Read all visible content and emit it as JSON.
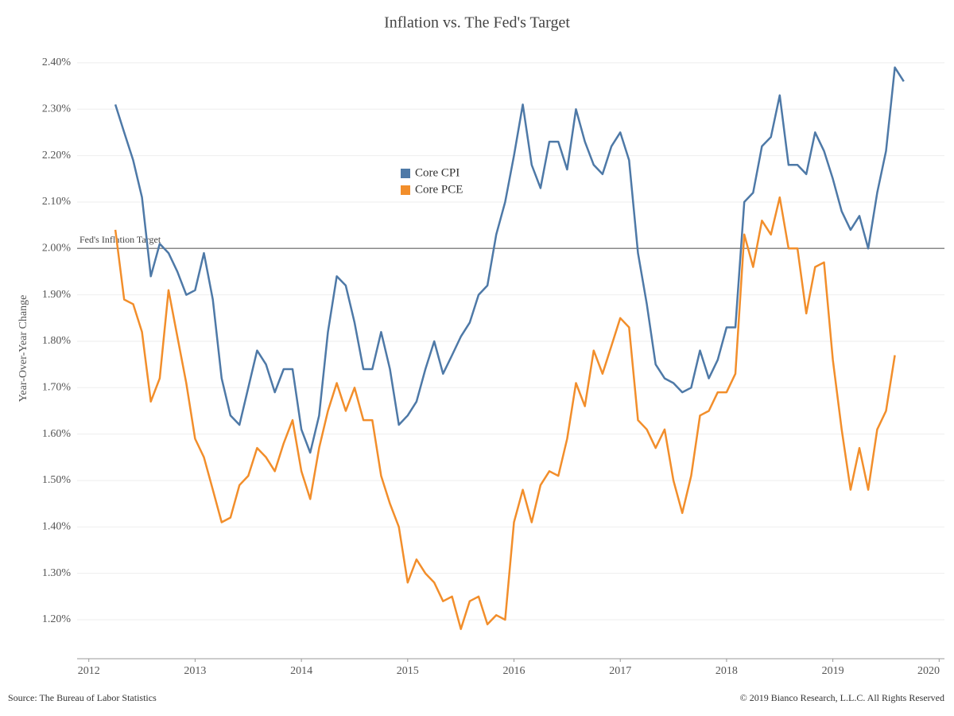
{
  "chart_data": {
    "type": "line",
    "title": "Inflation vs. The Fed's Target",
    "y_label": "Year-Over-Year Change",
    "source": "Source: The Bureau of Labor Statistics",
    "copyright": "© 2019 Bianco Research, L.L.C. All Rights Reserved",
    "reference_line": {
      "text": "Fed's Inflation Target",
      "value": 2.0,
      "color": "#888888"
    },
    "x": [
      2012.25,
      2012.333,
      2012.417,
      2012.5,
      2012.583,
      2012.667,
      2012.75,
      2012.833,
      2012.917,
      2013,
      2013.083,
      2013.167,
      2013.25,
      2013.333,
      2013.417,
      2013.5,
      2013.583,
      2013.667,
      2013.75,
      2013.833,
      2013.917,
      2014,
      2014.083,
      2014.167,
      2014.25,
      2014.333,
      2014.417,
      2014.5,
      2014.583,
      2014.667,
      2014.75,
      2014.833,
      2014.917,
      2015,
      2015.083,
      2015.167,
      2015.25,
      2015.333,
      2015.417,
      2015.5,
      2015.583,
      2015.667,
      2015.75,
      2015.833,
      2015.917,
      2016,
      2016.083,
      2016.167,
      2016.25,
      2016.333,
      2016.417,
      2016.5,
      2016.583,
      2016.667,
      2016.75,
      2016.833,
      2016.917,
      2017,
      2017.083,
      2017.167,
      2017.25,
      2017.333,
      2017.417,
      2017.5,
      2017.583,
      2017.667,
      2017.75,
      2017.833,
      2017.917,
      2018,
      2018.083,
      2018.167,
      2018.25,
      2018.333,
      2018.417,
      2018.5,
      2018.583,
      2018.667,
      2018.75,
      2018.833,
      2018.917,
      2019,
      2019.083,
      2019.167,
      2019.25,
      2019.333,
      2019.417,
      2019.5,
      2019.583,
      2019.667
    ],
    "series": [
      {
        "name": "Core CPI",
        "color": "#4e79a7",
        "values": [
          2.31,
          2.25,
          2.19,
          2.11,
          1.94,
          2.01,
          1.99,
          1.95,
          1.9,
          1.91,
          1.99,
          1.89,
          1.72,
          1.64,
          1.62,
          1.7,
          1.78,
          1.75,
          1.69,
          1.74,
          1.74,
          1.61,
          1.56,
          1.64,
          1.82,
          1.94,
          1.92,
          1.84,
          1.74,
          1.74,
          1.82,
          1.74,
          1.62,
          1.64,
          1.67,
          1.74,
          1.8,
          1.73,
          1.77,
          1.81,
          1.84,
          1.9,
          1.92,
          2.03,
          2.1,
          2.2,
          2.31,
          2.18,
          2.13,
          2.23,
          2.23,
          2.17,
          2.3,
          2.23,
          2.18,
          2.16,
          2.22,
          2.25,
          2.19,
          1.99,
          1.88,
          1.75,
          1.72,
          1.71,
          1.69,
          1.7,
          1.78,
          1.72,
          1.76,
          1.83,
          1.83,
          2.1,
          2.12,
          2.22,
          2.24,
          2.33,
          2.18,
          2.18,
          2.16,
          2.25,
          2.21,
          2.15,
          2.08,
          2.04,
          2.07,
          2.0,
          2.12,
          2.21,
          2.39,
          2.36
        ]
      },
      {
        "name": "Core PCE",
        "color": "#f28e2b",
        "values": [
          2.04,
          1.89,
          1.88,
          1.82,
          1.67,
          1.72,
          1.91,
          1.81,
          1.71,
          1.59,
          1.55,
          1.48,
          1.41,
          1.42,
          1.49,
          1.51,
          1.57,
          1.55,
          1.52,
          1.58,
          1.63,
          1.52,
          1.46,
          1.57,
          1.65,
          1.71,
          1.65,
          1.7,
          1.63,
          1.63,
          1.51,
          1.45,
          1.4,
          1.28,
          1.33,
          1.3,
          1.28,
          1.24,
          1.25,
          1.18,
          1.24,
          1.25,
          1.19,
          1.21,
          1.2,
          1.41,
          1.48,
          1.41,
          1.49,
          1.52,
          1.51,
          1.59,
          1.71,
          1.66,
          1.78,
          1.73,
          1.79,
          1.85,
          1.83,
          1.63,
          1.61,
          1.57,
          1.61,
          1.5,
          1.43,
          1.51,
          1.64,
          1.65,
          1.69,
          1.69,
          1.73,
          2.03,
          1.96,
          2.06,
          2.03,
          2.11,
          2.0,
          2.0,
          1.86,
          1.96,
          1.97,
          1.76,
          1.61,
          1.48,
          1.57,
          1.48,
          1.61,
          1.65,
          1.77,
          null
        ]
      }
    ],
    "xlim": [
      2011.89,
      2020.05
    ],
    "xticks": [
      2012,
      2013,
      2014,
      2015,
      2016,
      2017,
      2018,
      2019,
      2020
    ],
    "ylim": [
      1.116,
      2.441
    ],
    "yticks": [
      {
        "value": 1.2,
        "label": "1.20%"
      },
      {
        "value": 1.3,
        "label": "1.30%"
      },
      {
        "value": 1.4,
        "label": "1.40%"
      },
      {
        "value": 1.5,
        "label": "1.50%"
      },
      {
        "value": 1.6,
        "label": "1.60%"
      },
      {
        "value": 1.7,
        "label": "1.70%"
      },
      {
        "value": 1.8,
        "label": "1.80%"
      },
      {
        "value": 1.9,
        "label": "1.90%"
      },
      {
        "value": 2.0,
        "label": "2.00%"
      },
      {
        "value": 2.1,
        "label": "2.10%"
      },
      {
        "value": 2.2,
        "label": "2.20%"
      },
      {
        "value": 2.3,
        "label": "2.30%"
      },
      {
        "value": 2.4,
        "label": "2.40%"
      }
    ],
    "grid": true
  }
}
